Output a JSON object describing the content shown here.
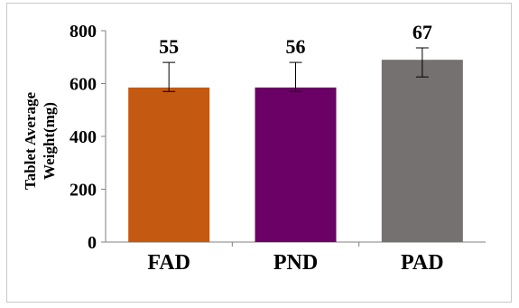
{
  "chart_data": {
    "type": "bar",
    "categories": [
      "FAD",
      "PND",
      "PAD"
    ],
    "values": [
      585,
      585,
      690
    ],
    "error_low": [
      570,
      570,
      625
    ],
    "error_high": [
      680,
      680,
      735
    ],
    "data_labels": [
      "55",
      "56",
      "67"
    ],
    "colors": [
      "#c45911",
      "#6b0066",
      "#767171"
    ],
    "ylabel_lines": [
      "Tablet Average",
      "Weight(mg)"
    ],
    "ylim": [
      0,
      800
    ],
    "yticks": [
      0,
      200,
      400,
      600,
      800
    ],
    "grid": false,
    "legend": "none"
  }
}
